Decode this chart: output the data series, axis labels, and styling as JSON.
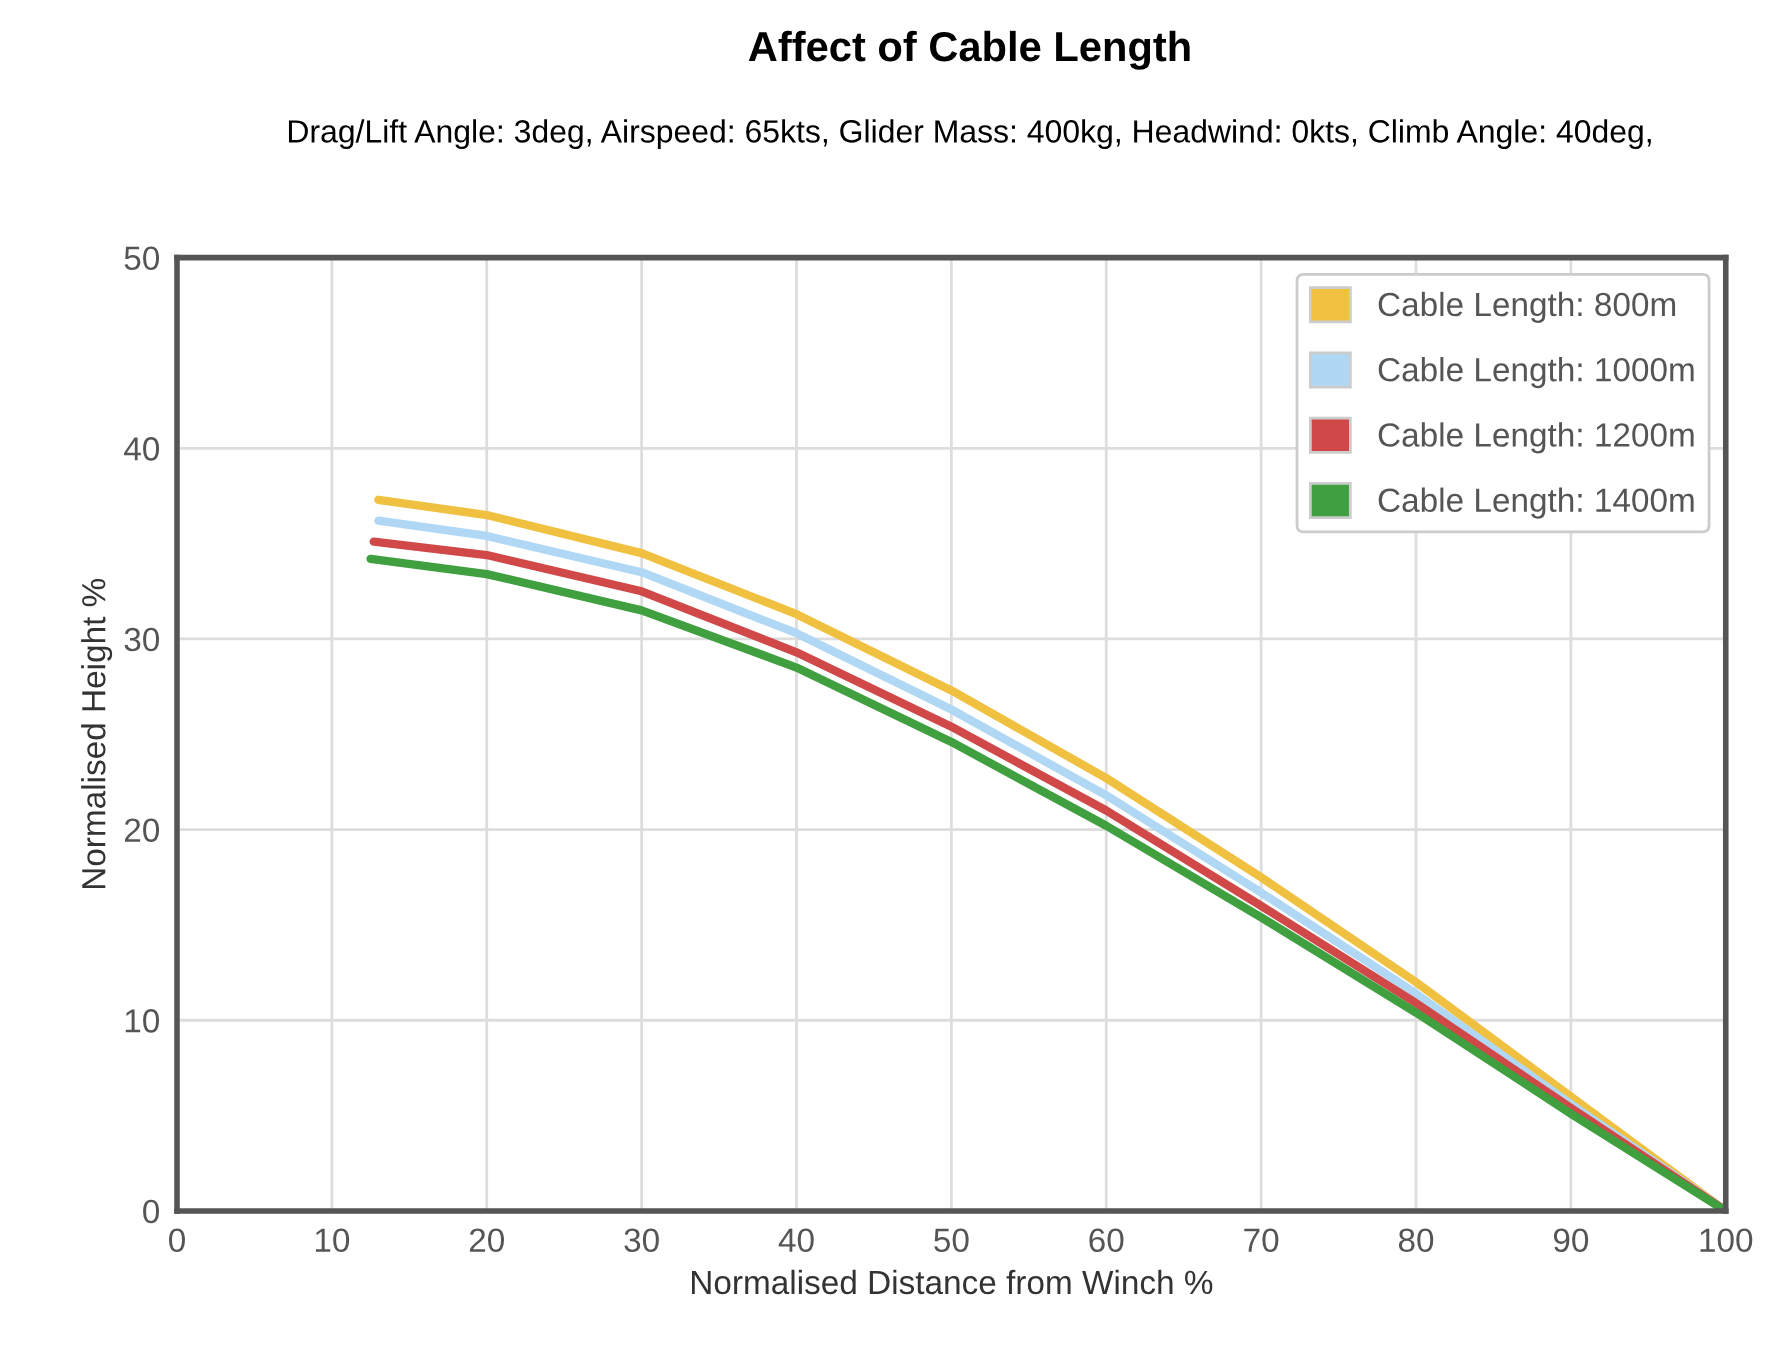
{
  "chart_data": {
    "type": "line",
    "title": "Affect of Cable Length",
    "subtitle": "Drag/Lift Angle: 3deg, Airspeed: 65kts, Glider Mass: 400kg, Headwind: 0kts, Climb Angle: 40deg,",
    "xlabel": "Normalised Distance from Winch %",
    "ylabel": "Normalised Height %",
    "series": [
      {
        "name": "Cable Length: 800m",
        "color": "#f0c040",
        "x": [
          13,
          20,
          30,
          40,
          50,
          60,
          70,
          80,
          90,
          100
        ],
        "values": [
          37.3,
          36.5,
          34.5,
          31.3,
          27.3,
          22.7,
          17.5,
          12,
          6,
          0
        ]
      },
      {
        "name": "Cable Length: 1000m",
        "color": "#b0d8f5",
        "x": [
          13,
          20,
          30,
          40,
          50,
          60,
          70,
          80,
          90,
          100
        ],
        "values": [
          36.2,
          35.4,
          33.5,
          30.3,
          26.3,
          21.8,
          16.7,
          11.4,
          5.6,
          0
        ]
      },
      {
        "name": "Cable Length: 1200m",
        "color": "#d04848",
        "x": [
          12.7,
          20,
          30,
          40,
          50,
          60,
          70,
          80,
          90,
          100
        ],
        "values": [
          35.1,
          34.4,
          32.5,
          29.3,
          25.4,
          21,
          16,
          10.9,
          5.4,
          0
        ]
      },
      {
        "name": "Cable Length: 1400m",
        "color": "#40a040",
        "x": [
          12.5,
          20,
          30,
          40,
          50,
          60,
          70,
          80,
          90,
          100
        ],
        "values": [
          34.2,
          33.4,
          31.5,
          28.5,
          24.6,
          20.2,
          15.4,
          10.4,
          5.1,
          0
        ]
      }
    ],
    "xlim": [
      0,
      100
    ],
    "ylim": [
      0,
      50
    ],
    "xticks": [
      0,
      10,
      20,
      30,
      40,
      50,
      60,
      70,
      80,
      90,
      100
    ],
    "yticks": [
      0,
      10,
      20,
      30,
      40,
      50
    ],
    "grid": true,
    "legend": "top right"
  }
}
